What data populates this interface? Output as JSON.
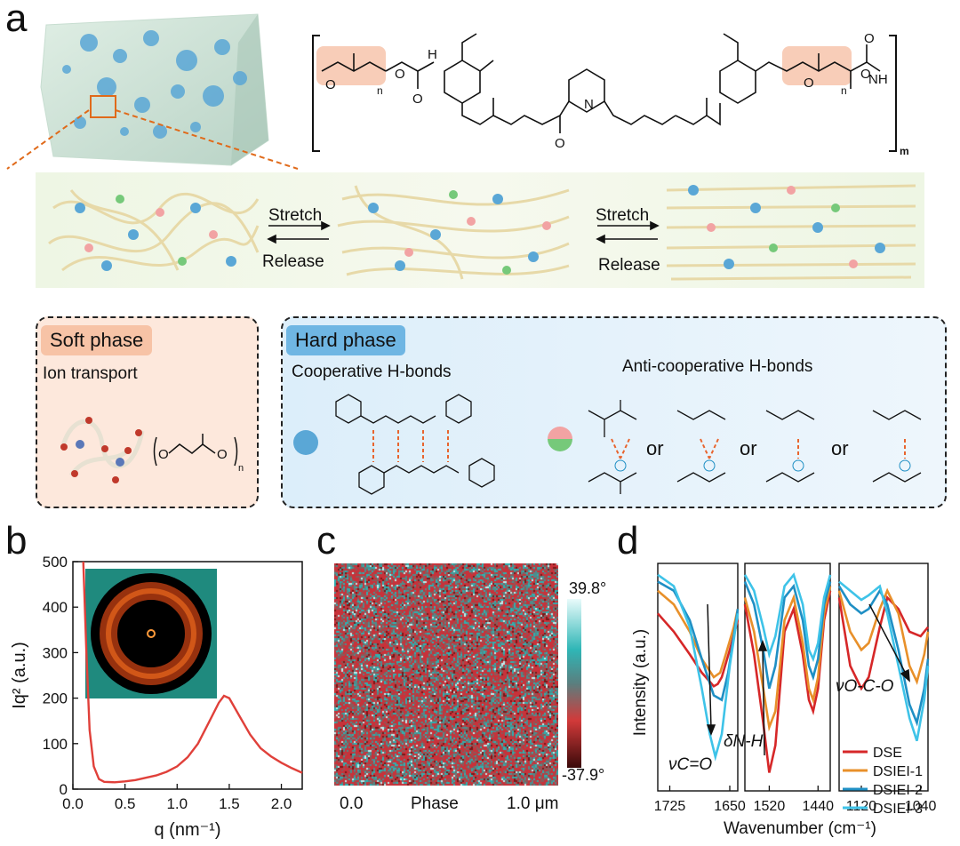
{
  "panel_labels": {
    "a": "a",
    "b": "b",
    "c": "c",
    "d": "d"
  },
  "panel_a": {
    "polymer_subscripts": {
      "n1": "n",
      "n2": "n",
      "m": "m"
    },
    "atom_labels": {
      "O": "O",
      "N": "N",
      "H": "H",
      "NH": "NH"
    },
    "stretch_label_1": "Stretch",
    "release_label_1": "Release",
    "stretch_label_2": "Stretch",
    "release_label_2": "Release",
    "soft_phase": {
      "title": "Soft phase",
      "subtitle": "Ion transport",
      "subscript": "n"
    },
    "hard_phase": {
      "title": "Hard phase",
      "cooperative": "Cooperative H-bonds",
      "anticooperative": "Anti-cooperative H-bonds",
      "or_labels": [
        "or",
        "or",
        "or"
      ]
    }
  },
  "panel_b": {
    "xlabel": "q (nm⁻¹)",
    "ylabel": "Iq² (a.u.)",
    "xticks": [
      "0.0",
      "0.5",
      "1.0",
      "1.5",
      "2.0"
    ],
    "yticks": [
      "0",
      "100",
      "200",
      "300",
      "400",
      "500"
    ]
  },
  "panel_c": {
    "colorbar_max": "39.8°",
    "colorbar_min": "-37.9°",
    "x_left": "0.0",
    "x_center": "Phase",
    "x_right": "1.0 μm"
  },
  "panel_d": {
    "xlabel": "Wavenumber (cm⁻¹)",
    "ylabel": "Intensity (a.u.)",
    "xticks": [
      "1725",
      "1650",
      "1520",
      "1440",
      "1120",
      "1040"
    ],
    "annotations": {
      "co": "νC=O",
      "nh": "δN-H",
      "oco": "νO-C-O"
    },
    "legend": [
      "DSE",
      "DSIEI-1",
      "DSIEI-2",
      "DSIEI-3"
    ],
    "colors": {
      "DSE": "#d62728",
      "DSIEI-1": "#e8902a",
      "DSIEI-2": "#1f8fc4",
      "DSIEI-3": "#3ec3e8"
    }
  },
  "chart_data": [
    {
      "type": "line",
      "xlabel": "q (nm⁻¹)",
      "ylabel": "Iq² (a.u.)",
      "xlim": [
        0,
        2.2
      ],
      "ylim": [
        0,
        500
      ],
      "series": [
        {
          "x": [
            0.1,
            0.13,
            0.16,
            0.2,
            0.25,
            0.3,
            0.4,
            0.5,
            0.6,
            0.7,
            0.8,
            0.9,
            1.0,
            1.1,
            1.2,
            1.3,
            1.4,
            1.45,
            1.5,
            1.6,
            1.7,
            1.8,
            1.9,
            2.0,
            2.1,
            2.2
          ],
          "y": [
            500,
            300,
            130,
            50,
            22,
            16,
            15,
            17,
            20,
            25,
            30,
            38,
            50,
            70,
            100,
            145,
            190,
            205,
            200,
            160,
            120,
            90,
            72,
            58,
            46,
            36
          ]
        }
      ]
    },
    {
      "type": "line",
      "xlabel": "Wavenumber (cm⁻¹)",
      "ylabel": "Intensity (a.u.)",
      "x_reversed": true,
      "segments": [
        {
          "xlim": [
            1740,
            1640
          ]
        },
        {
          "xlim": [
            1560,
            1420
          ]
        },
        {
          "xlim": [
            1150,
            1030
          ]
        }
      ],
      "series": [
        {
          "name": "DSE",
          "seg1": [
            [
              1740,
              0.78
            ],
            [
              1720,
              0.7
            ],
            [
              1700,
              0.6
            ],
            [
              1685,
              0.52
            ],
            [
              1670,
              0.46
            ],
            [
              1665,
              0.47
            ],
            [
              1660,
              0.5
            ],
            [
              1650,
              0.62
            ],
            [
              1640,
              0.75
            ]
          ],
          "seg2": [
            [
              1560,
              0.82
            ],
            [
              1545,
              0.6
            ],
            [
              1530,
              0.3
            ],
            [
              1520,
              0.08
            ],
            [
              1510,
              0.2
            ],
            [
              1495,
              0.7
            ],
            [
              1480,
              0.8
            ],
            [
              1465,
              0.6
            ],
            [
              1455,
              0.4
            ],
            [
              1448,
              0.35
            ],
            [
              1440,
              0.45
            ],
            [
              1430,
              0.75
            ],
            [
              1420,
              0.88
            ]
          ],
          "seg3": [
            [
              1150,
              0.85
            ],
            [
              1135,
              0.55
            ],
            [
              1120,
              0.45
            ],
            [
              1110,
              0.5
            ],
            [
              1095,
              0.72
            ],
            [
              1085,
              0.85
            ],
            [
              1070,
              0.8
            ],
            [
              1055,
              0.7
            ],
            [
              1040,
              0.68
            ],
            [
              1030,
              0.72
            ]
          ]
        },
        {
          "name": "DSIEI-1",
          "seg1": [
            [
              1740,
              0.88
            ],
            [
              1720,
              0.82
            ],
            [
              1700,
              0.7
            ],
            [
              1685,
              0.58
            ],
            [
              1670,
              0.5
            ],
            [
              1662,
              0.52
            ],
            [
              1655,
              0.6
            ],
            [
              1645,
              0.72
            ],
            [
              1640,
              0.8
            ]
          ],
          "seg2": [
            [
              1560,
              0.85
            ],
            [
              1545,
              0.7
            ],
            [
              1530,
              0.45
            ],
            [
              1520,
              0.28
            ],
            [
              1510,
              0.35
            ],
            [
              1495,
              0.75
            ],
            [
              1480,
              0.85
            ],
            [
              1465,
              0.65
            ],
            [
              1455,
              0.45
            ],
            [
              1448,
              0.4
            ],
            [
              1440,
              0.5
            ],
            [
              1430,
              0.78
            ],
            [
              1420,
              0.9
            ]
          ],
          "seg3": [
            [
              1150,
              0.88
            ],
            [
              1135,
              0.7
            ],
            [
              1120,
              0.62
            ],
            [
              1110,
              0.65
            ],
            [
              1095,
              0.8
            ],
            [
              1085,
              0.88
            ],
            [
              1070,
              0.78
            ],
            [
              1055,
              0.55
            ],
            [
              1045,
              0.48
            ],
            [
              1035,
              0.6
            ],
            [
              1030,
              0.7
            ]
          ]
        },
        {
          "name": "DSIEI-2",
          "seg1": [
            [
              1740,
              0.92
            ],
            [
              1720,
              0.88
            ],
            [
              1700,
              0.75
            ],
            [
              1685,
              0.58
            ],
            [
              1670,
              0.42
            ],
            [
              1660,
              0.4
            ],
            [
              1652,
              0.52
            ],
            [
              1645,
              0.68
            ],
            [
              1640,
              0.8
            ]
          ],
          "seg2": [
            [
              1560,
              0.92
            ],
            [
              1545,
              0.82
            ],
            [
              1530,
              0.62
            ],
            [
              1520,
              0.45
            ],
            [
              1510,
              0.55
            ],
            [
              1495,
              0.85
            ],
            [
              1480,
              0.9
            ],
            [
              1465,
              0.75
            ],
            [
              1455,
              0.55
            ],
            [
              1448,
              0.5
            ],
            [
              1440,
              0.58
            ],
            [
              1430,
              0.82
            ],
            [
              1420,
              0.92
            ]
          ],
          "seg3": [
            [
              1150,
              0.9
            ],
            [
              1135,
              0.82
            ],
            [
              1120,
              0.78
            ],
            [
              1110,
              0.8
            ],
            [
              1095,
              0.88
            ],
            [
              1085,
              0.82
            ],
            [
              1070,
              0.62
            ],
            [
              1055,
              0.38
            ],
            [
              1045,
              0.3
            ],
            [
              1035,
              0.45
            ],
            [
              1030,
              0.58
            ]
          ]
        },
        {
          "name": "DSIEI-3",
          "seg1": [
            [
              1740,
              0.95
            ],
            [
              1720,
              0.9
            ],
            [
              1700,
              0.72
            ],
            [
              1685,
              0.45
            ],
            [
              1675,
              0.25
            ],
            [
              1668,
              0.15
            ],
            [
              1660,
              0.25
            ],
            [
              1650,
              0.55
            ],
            [
              1640,
              0.78
            ]
          ],
          "seg2": [
            [
              1560,
              0.95
            ],
            [
              1545,
              0.88
            ],
            [
              1530,
              0.72
            ],
            [
              1520,
              0.6
            ],
            [
              1510,
              0.68
            ],
            [
              1495,
              0.9
            ],
            [
              1480,
              0.95
            ],
            [
              1465,
              0.82
            ],
            [
              1455,
              0.62
            ],
            [
              1448,
              0.58
            ],
            [
              1440,
              0.65
            ],
            [
              1430,
              0.85
            ],
            [
              1420,
              0.95
            ]
          ],
          "seg3": [
            [
              1150,
              0.92
            ],
            [
              1135,
              0.88
            ],
            [
              1120,
              0.84
            ],
            [
              1110,
              0.86
            ],
            [
              1095,
              0.9
            ],
            [
              1085,
              0.78
            ],
            [
              1070,
              0.55
            ],
            [
              1055,
              0.32
            ],
            [
              1045,
              0.22
            ],
            [
              1035,
              0.4
            ],
            [
              1030,
              0.55
            ]
          ]
        }
      ]
    }
  ]
}
